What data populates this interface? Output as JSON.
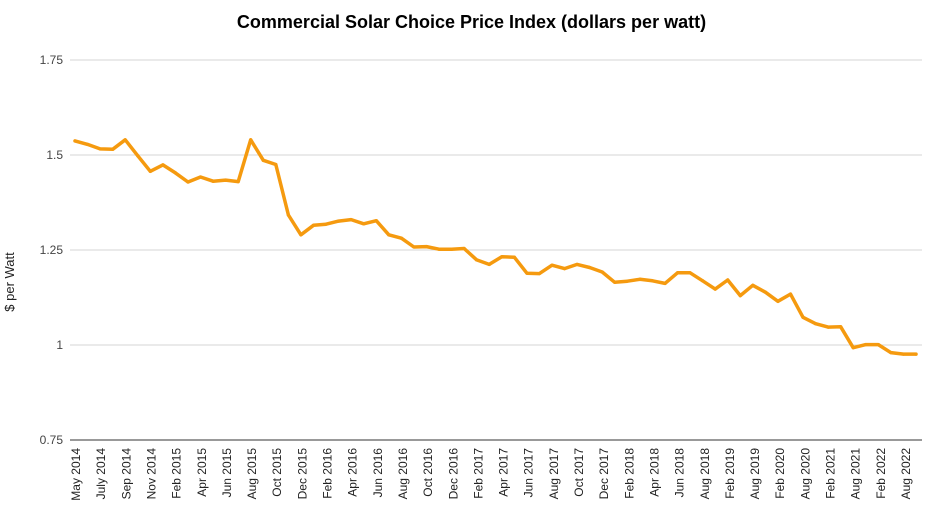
{
  "chart_data": {
    "type": "line",
    "title": "Commercial Solar Choice Price Index (dollars per watt)",
    "xlabel": "",
    "ylabel": "$ per Watt",
    "ylim": [
      0.75,
      1.75
    ],
    "yticks": [
      "0.75",
      "1",
      "1.25",
      "1.5",
      "1.75"
    ],
    "ytick_values": [
      0.75,
      1.0,
      1.25,
      1.5,
      1.75
    ],
    "grid": true,
    "legend": "none",
    "line_color": "#f59a0f",
    "x_tick_labels": [
      "May 2014",
      "July 2014",
      "Sep 2014",
      "Nov 2014",
      "Feb 2015",
      "Apr 2015",
      "Jun 2015",
      "Aug 2015",
      "Oct 2015",
      "Dec 2015",
      "Feb 2016",
      "Apr 2016",
      "Jun 2016",
      "Aug 2016",
      "Oct 2016",
      "Dec 2016",
      "Feb 2017",
      "Apr 2017",
      "Jun 2017",
      "Aug 2017",
      "Oct 2017",
      "Dec 2017",
      "Feb 2018",
      "Apr 2018",
      "Jun 2018",
      "Aug 2018",
      "Feb 2019",
      "Aug 2019",
      "Feb 2020",
      "Aug 2020",
      "Feb 2021",
      "Aug 2021",
      "Feb 2022",
      "Aug 2022"
    ],
    "series": [
      {
        "name": "",
        "values": [
          1.537,
          1.528,
          1.516,
          1.515,
          1.54,
          1.498,
          1.457,
          1.474,
          1.453,
          1.429,
          1.442,
          1.431,
          1.434,
          1.43,
          1.54,
          1.486,
          1.475,
          1.342,
          1.29,
          1.315,
          1.318,
          1.326,
          1.33,
          1.319,
          1.327,
          1.29,
          1.281,
          1.258,
          1.259,
          1.252,
          1.252,
          1.254,
          1.224,
          1.212,
          1.232,
          1.231,
          1.189,
          1.188,
          1.21,
          1.201,
          1.212,
          1.204,
          1.192,
          1.165,
          1.168,
          1.173,
          1.169,
          1.162,
          1.19,
          1.19,
          1.169,
          1.147,
          1.171,
          1.13,
          1.157,
          1.139,
          1.115,
          1.134,
          1.073,
          1.056,
          1.047,
          1.048,
          0.993,
          1.001,
          1.001,
          0.98,
          0.976,
          0.976
        ]
      }
    ]
  }
}
